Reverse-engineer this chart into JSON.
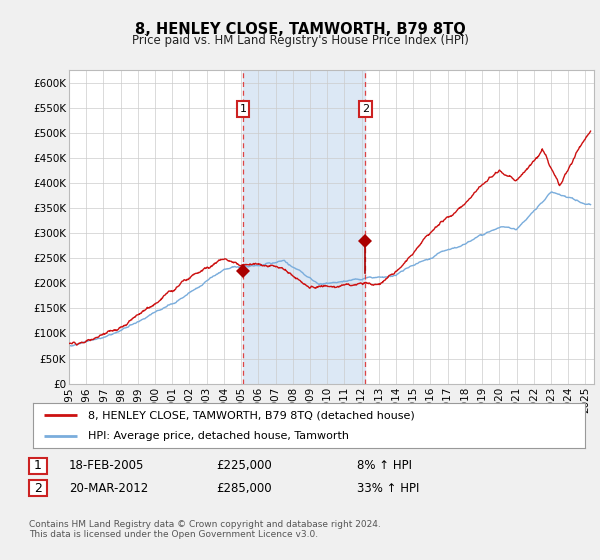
{
  "title": "8, HENLEY CLOSE, TAMWORTH, B79 8TQ",
  "subtitle": "Price paid vs. HM Land Registry's House Price Index (HPI)",
  "ylabel_ticks": [
    "£0",
    "£50K",
    "£100K",
    "£150K",
    "£200K",
    "£250K",
    "£300K",
    "£350K",
    "£400K",
    "£450K",
    "£500K",
    "£550K",
    "£600K"
  ],
  "ytick_vals": [
    0,
    50000,
    100000,
    150000,
    200000,
    250000,
    300000,
    350000,
    400000,
    450000,
    500000,
    550000,
    600000
  ],
  "ylim": [
    0,
    625000
  ],
  "xlim_start": 1995.0,
  "xlim_end": 2025.5,
  "x_tick_years": [
    1995,
    1996,
    1997,
    1998,
    1999,
    2000,
    2001,
    2002,
    2003,
    2004,
    2005,
    2006,
    2007,
    2008,
    2009,
    2010,
    2011,
    2012,
    2013,
    2014,
    2015,
    2016,
    2017,
    2018,
    2019,
    2020,
    2021,
    2022,
    2023,
    2024,
    2025
  ],
  "hpi_color": "#7aaddc",
  "sale_color": "#cc1111",
  "marker_color": "#aa0000",
  "sale1_x": 2005.12,
  "sale1_y": 225000,
  "sale2_x": 2012.22,
  "sale2_y": 285000,
  "vline_color": "#dd4444",
  "shade_color": "#dce8f5",
  "legend_label1": "8, HENLEY CLOSE, TAMWORTH, B79 8TQ (detached house)",
  "legend_label2": "HPI: Average price, detached house, Tamworth",
  "table_row1_date": "18-FEB-2005",
  "table_row1_price": "£225,000",
  "table_row1_hpi": "8% ↑ HPI",
  "table_row2_date": "20-MAR-2012",
  "table_row2_price": "£285,000",
  "table_row2_hpi": "33% ↑ HPI",
  "footer": "Contains HM Land Registry data © Crown copyright and database right 2024.\nThis data is licensed under the Open Government Licence v3.0.",
  "background_color": "#f0f0f0",
  "plot_bg_color": "#ffffff",
  "grid_color": "#cccccc"
}
